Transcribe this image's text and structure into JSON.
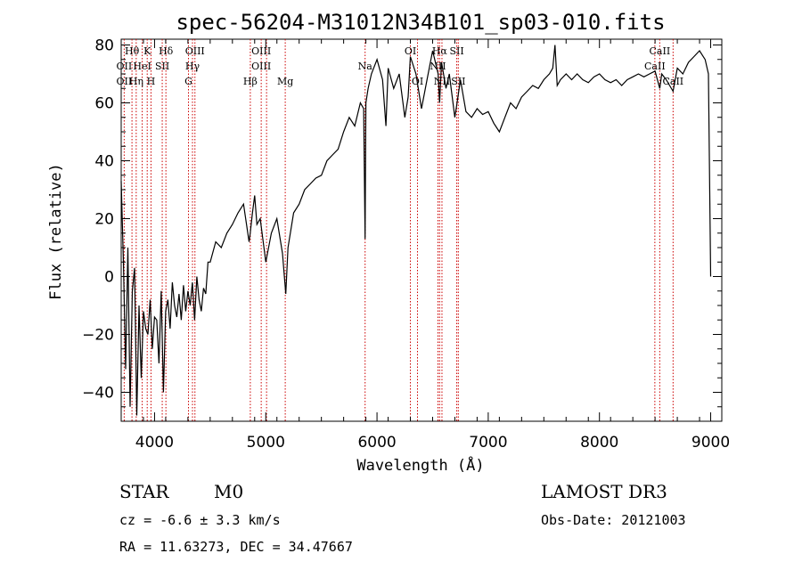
{
  "chart_data": {
    "type": "line",
    "title": "spec-56204-M31012N34B101_sp03-010.fits",
    "xlabel": "Wavelength (Å)",
    "ylabel": "Flux (relative)",
    "xlim": [
      3700,
      9100
    ],
    "ylim": [
      -50,
      82
    ],
    "xticks": [
      4000,
      5000,
      6000,
      7000,
      8000,
      9000
    ],
    "yticks": [
      -40,
      -20,
      0,
      20,
      40,
      60,
      80
    ],
    "grid": false,
    "series": [
      {
        "color": "#000000",
        "x": [
          3700,
          3720,
          3740,
          3760,
          3780,
          3800,
          3820,
          3840,
          3860,
          3880,
          3900,
          3920,
          3940,
          3960,
          3980,
          4000,
          4020,
          4040,
          4060,
          4080,
          4100,
          4120,
          4140,
          4160,
          4180,
          4200,
          4220,
          4240,
          4260,
          4280,
          4300,
          4320,
          4340,
          4360,
          4380,
          4400,
          4420,
          4440,
          4460,
          4480,
          4500,
          4550,
          4600,
          4650,
          4700,
          4750,
          4800,
          4850,
          4860,
          4880,
          4900,
          4920,
          4950,
          5000,
          5050,
          5100,
          5150,
          5180,
          5200,
          5250,
          5300,
          5350,
          5400,
          5450,
          5500,
          5550,
          5600,
          5650,
          5700,
          5750,
          5800,
          5850,
          5880,
          5893,
          5900,
          5920,
          5950,
          6000,
          6050,
          6080,
          6100,
          6150,
          6200,
          6250,
          6280,
          6300,
          6350,
          6400,
          6450,
          6500,
          6550,
          6563,
          6580,
          6620,
          6650,
          6700,
          6720,
          6750,
          6800,
          6850,
          6900,
          6950,
          7000,
          7050,
          7100,
          7150,
          7200,
          7250,
          7300,
          7350,
          7400,
          7450,
          7500,
          7550,
          7580,
          7600,
          7620,
          7650,
          7700,
          7750,
          7800,
          7850,
          7900,
          7950,
          8000,
          8050,
          8100,
          8150,
          8200,
          8250,
          8300,
          8350,
          8400,
          8450,
          8500,
          8542,
          8560,
          8600,
          8662,
          8700,
          8750,
          8800,
          8850,
          8900,
          8950,
          8980,
          9000
        ],
        "y": [
          33,
          5,
          -32,
          10,
          -45,
          -5,
          3,
          -48,
          -10,
          -35,
          -12,
          -18,
          -20,
          -8,
          -25,
          -14,
          -15,
          -30,
          -5,
          -40,
          -12,
          -8,
          -18,
          -2,
          -10,
          -14,
          -6,
          -15,
          -3,
          -12,
          -5,
          -10,
          -2,
          -15,
          0,
          -8,
          -12,
          -4,
          -6,
          5,
          5,
          12,
          10,
          15,
          18,
          22,
          25,
          12,
          15,
          22,
          28,
          18,
          20,
          5,
          15,
          20,
          8,
          -6,
          10,
          22,
          25,
          30,
          32,
          34,
          35,
          40,
          42,
          44,
          50,
          55,
          52,
          60,
          58,
          13,
          60,
          65,
          70,
          75,
          68,
          52,
          72,
          65,
          70,
          55,
          62,
          76,
          70,
          58,
          68,
          78,
          70,
          60,
          74,
          65,
          70,
          55,
          60,
          68,
          57,
          55,
          58,
          56,
          57,
          53,
          50,
          55,
          60,
          58,
          62,
          64,
          66,
          65,
          68,
          70,
          72,
          80,
          66,
          68,
          70,
          68,
          70,
          68,
          67,
          69,
          70,
          68,
          67,
          68,
          66,
          68,
          69,
          70,
          69,
          70,
          71,
          65,
          70,
          68,
          64,
          72,
          70,
          74,
          76,
          78,
          75,
          70,
          0
        ]
      }
    ],
    "line_markers": [
      {
        "label": "Hθ",
        "wl": 3797,
        "row": 0
      },
      {
        "label": "OII",
        "wl": 3727,
        "row": 1
      },
      {
        "label": "OII",
        "wl": 3727,
        "row": 2
      },
      {
        "label": "K",
        "wl": 3934,
        "row": 0
      },
      {
        "label": "HeI",
        "wl": 3889,
        "row": 1
      },
      {
        "label": "Hη",
        "wl": 3835,
        "row": 2
      },
      {
        "label": "H",
        "wl": 3968,
        "row": 2
      },
      {
        "label": "SII",
        "wl": 4069,
        "row": 1
      },
      {
        "label": "Hδ",
        "wl": 4102,
        "row": 0
      },
      {
        "label": "OIII",
        "wl": 4363,
        "row": 0
      },
      {
        "label": "Hγ",
        "wl": 4341,
        "row": 1
      },
      {
        "label": "G",
        "wl": 4305,
        "row": 2
      },
      {
        "label": "Hβ",
        "wl": 4861,
        "row": 2
      },
      {
        "label": "OIII",
        "wl": 4959,
        "row": 0
      },
      {
        "label": "OIII",
        "wl": 4959,
        "row": 1
      },
      {
        "label": "Mg",
        "wl": 5175,
        "row": 2
      },
      {
        "label": "Na",
        "wl": 5893,
        "row": 1
      },
      {
        "label": "OI",
        "wl": 6300,
        "row": 0
      },
      {
        "label": "OI",
        "wl": 6364,
        "row": 2
      },
      {
        "label": "Hα",
        "wl": 6563,
        "row": 0
      },
      {
        "label": "NII",
        "wl": 6548,
        "row": 1
      },
      {
        "label": "NII",
        "wl": 6584,
        "row": 2
      },
      {
        "label": "SII",
        "wl": 6717,
        "row": 0
      },
      {
        "label": "SII",
        "wl": 6731,
        "row": 2
      },
      {
        "label": "CaII",
        "wl": 8542,
        "row": 0
      },
      {
        "label": "CaII",
        "wl": 8498,
        "row": 1
      },
      {
        "label": "CaII",
        "wl": 8662,
        "row": 2
      }
    ],
    "marker_lines": [
      3727,
      3797,
      3835,
      3889,
      3934,
      3968,
      4069,
      4102,
      4305,
      4341,
      4363,
      4861,
      4959,
      5007,
      5175,
      5893,
      6300,
      6364,
      6548,
      6563,
      6584,
      6717,
      6731,
      8498,
      8542,
      8662
    ],
    "marker_color": "#cc0000"
  },
  "info": {
    "object_class": "STAR",
    "subclass": "M0",
    "survey": "LAMOST DR3",
    "redshift": "cz = -6.6 ± 3.3 km/s",
    "obs_date": "Obs-Date: 20121003",
    "coords": "RA =  11.63273, DEC =  34.47667"
  }
}
